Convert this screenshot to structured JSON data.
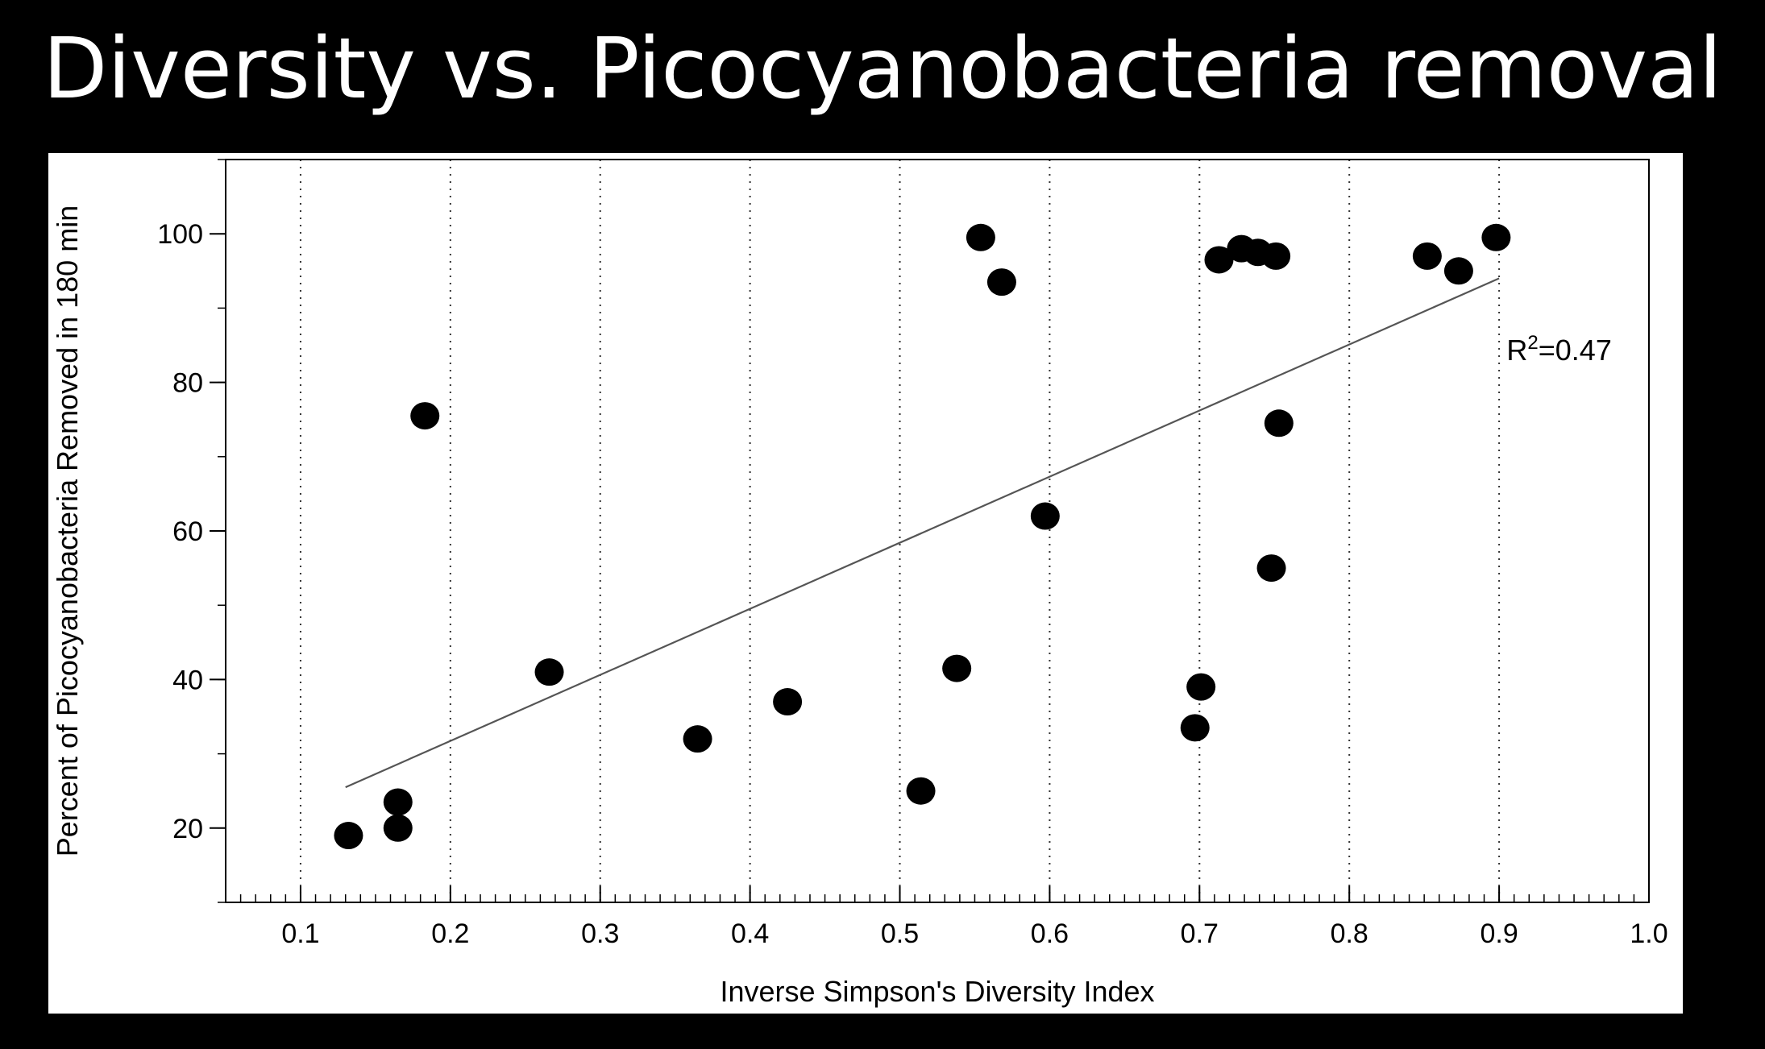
{
  "slide": {
    "title": "Diversity vs. Picocyanobacteria removal"
  },
  "chart_data": {
    "type": "scatter",
    "title": "",
    "xlabel": "Inverse Simpson's Diversity Index",
    "ylabel": "Percent of Picocyanobacteria Removed in 180 min",
    "xlim": [
      0.05,
      1.0
    ],
    "ylim": [
      10,
      110
    ],
    "x_major_ticks": [
      0.1,
      0.2,
      0.3,
      0.4,
      0.5,
      0.6,
      0.7,
      0.8,
      0.9,
      1.0
    ],
    "x_tick_labels": [
      "0.1",
      "0.2",
      "0.3",
      "0.4",
      "0.5",
      "0.6",
      "0.7",
      "0.8",
      "0.9",
      "1.0"
    ],
    "x_minor_step": 0.01,
    "y_major_ticks": [
      20,
      40,
      60,
      80,
      100
    ],
    "y_tick_labels": [
      "20",
      "40",
      "60",
      "80",
      "100"
    ],
    "y_minor_step": 10,
    "vertical_gridlines": [
      0.1,
      0.2,
      0.3,
      0.4,
      0.5,
      0.6,
      0.7,
      0.8,
      0.9
    ],
    "grid_style": "dotted",
    "series": [
      {
        "name": "samples",
        "x": [
          0.132,
          0.165,
          0.165,
          0.183,
          0.266,
          0.365,
          0.425,
          0.514,
          0.538,
          0.554,
          0.568,
          0.597,
          0.697,
          0.701,
          0.713,
          0.728,
          0.739,
          0.751,
          0.748,
          0.753,
          0.852,
          0.873,
          0.898
        ],
        "y": [
          19,
          20,
          23.5,
          75.5,
          41,
          32,
          37,
          25,
          41.5,
          99.5,
          93.5,
          62,
          33.5,
          39,
          96.5,
          98,
          97.5,
          97,
          55,
          74.5,
          97,
          95,
          99.5
        ]
      }
    ],
    "trendline": {
      "x": [
        0.13,
        0.9
      ],
      "y": [
        25.5,
        94
      ]
    },
    "annotations": [
      {
        "base": "R",
        "superscript": "2",
        "text": "=0.47",
        "x": 0.905,
        "y": 83
      }
    ]
  }
}
